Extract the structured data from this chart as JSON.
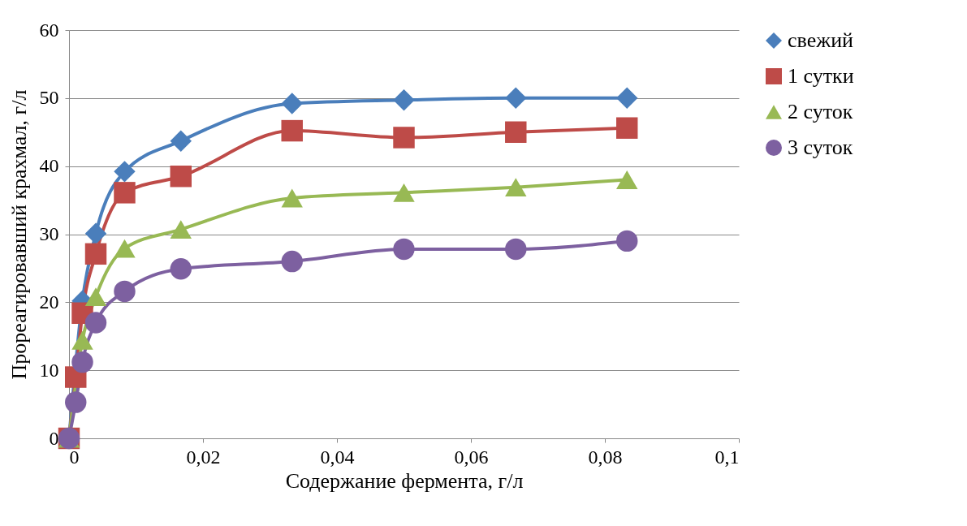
{
  "chart_data": {
    "type": "line",
    "xlabel": "Содержание фермента, г/л",
    "ylabel": "Прореагировавший крахмал, г/л",
    "x": [
      0,
      0.001,
      0.002,
      0.004,
      0.0083,
      0.0167,
      0.0333,
      0.05,
      0.0667,
      0.0833
    ],
    "series": [
      {
        "name": "свежий",
        "color": "#4a7ebb",
        "marker": "diamond",
        "values": [
          0,
          null,
          20.2,
          30.1,
          39.2,
          43.7,
          49.2,
          49.7,
          50,
          50
        ]
      },
      {
        "name": "1 сутки",
        "color": "#be4b48",
        "marker": "square",
        "values": [
          0,
          9,
          18.4,
          27.1,
          36.1,
          38.5,
          45.2,
          44.2,
          45,
          45.6
        ]
      },
      {
        "name": "2  суток",
        "color": "#98b954",
        "marker": "triangle",
        "values": [
          0,
          null,
          14.4,
          20.8,
          27.9,
          30.7,
          35.3,
          36.1,
          36.9,
          38
        ]
      },
      {
        "name": "3  суток",
        "color": "#7d60a0",
        "marker": "circle",
        "values": [
          0,
          5.3,
          11.2,
          17,
          21.6,
          24.9,
          26,
          27.8,
          27.8,
          29
        ]
      }
    ],
    "xlim": [
      0,
      0.1
    ],
    "xticks": [
      0,
      {
        "value": 0.02,
        "label": "0,02"
      },
      {
        "value": 0.04,
        "label": "0,04"
      },
      {
        "value": 0.06,
        "label": "0,06"
      },
      {
        "value": 0.08,
        "label": "0,08"
      },
      {
        "value": 0.1,
        "label": "0,1"
      }
    ],
    "ylim": [
      0,
      60
    ],
    "yticks": [
      0,
      10,
      20,
      30,
      40,
      50,
      60
    ],
    "grid": "y",
    "legend": "right"
  }
}
